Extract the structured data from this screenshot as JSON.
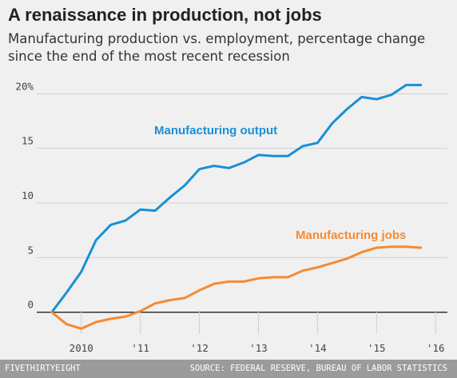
{
  "header": {
    "title": "A renaissance in production, not jobs",
    "subtitle": "Manufacturing production vs. employment, percentage change since the end of the most recent recession"
  },
  "footer": {
    "brand": "FIVETHIRTYEIGHT",
    "source": "SOURCE: FEDERAL RESERVE, BUREAU OF LABOR STATISTICS"
  },
  "colors": {
    "output": "#1a8fd6",
    "jobs": "#f58a32",
    "grid": "#cfcfcf",
    "zero": "#222222"
  },
  "chart_data": {
    "type": "line",
    "title": "A renaissance in production, not jobs",
    "subtitle": "Manufacturing production vs. employment, percentage change since the end of the most recent recession",
    "xlabel": "",
    "ylabel": "",
    "ylim": [
      -2,
      22
    ],
    "xlim": [
      2009.3,
      2016.2
    ],
    "yticks": [
      0,
      5,
      10,
      15,
      20
    ],
    "ytick_labels": [
      "0",
      "5",
      "10",
      "15",
      "20%"
    ],
    "xticks": [
      2010,
      2011,
      2012,
      2013,
      2014,
      2015,
      2016
    ],
    "xtick_labels": [
      "2010",
      "'11",
      "'12",
      "'13",
      "'14",
      "'15",
      "'16"
    ],
    "grid": true,
    "series": [
      {
        "name": "Manufacturing output",
        "x": [
          2009.5,
          2009.75,
          2010.0,
          2010.25,
          2010.5,
          2010.75,
          2011.0,
          2011.25,
          2011.5,
          2011.75,
          2012.0,
          2012.25,
          2012.5,
          2012.75,
          2013.0,
          2013.25,
          2013.5,
          2013.75,
          2014.0,
          2014.25,
          2014.5,
          2014.75,
          2015.0,
          2015.25,
          2015.5,
          2015.75
        ],
        "y": [
          0,
          1.8,
          3.7,
          6.6,
          8.0,
          8.4,
          9.4,
          9.3,
          10.5,
          11.6,
          13.1,
          13.4,
          13.2,
          13.7,
          14.4,
          14.3,
          14.3,
          15.2,
          15.5,
          17.3,
          18.6,
          19.7,
          19.5,
          19.9,
          20.8,
          20.8
        ]
      },
      {
        "name": "Manufacturing jobs",
        "x": [
          2009.5,
          2009.75,
          2010.0,
          2010.25,
          2010.5,
          2010.75,
          2011.0,
          2011.25,
          2011.5,
          2011.75,
          2012.0,
          2012.25,
          2012.5,
          2012.75,
          2013.0,
          2013.25,
          2013.5,
          2013.75,
          2014.0,
          2014.25,
          2014.5,
          2014.75,
          2015.0,
          2015.25,
          2015.5,
          2015.75
        ],
        "y": [
          0,
          -1.1,
          -1.5,
          -0.9,
          -0.6,
          -0.4,
          0.1,
          0.8,
          1.1,
          1.3,
          2.0,
          2.6,
          2.8,
          2.8,
          3.1,
          3.2,
          3.2,
          3.8,
          4.1,
          4.5,
          4.9,
          5.5,
          5.9,
          6.0,
          6.0,
          5.9
        ]
      }
    ]
  }
}
